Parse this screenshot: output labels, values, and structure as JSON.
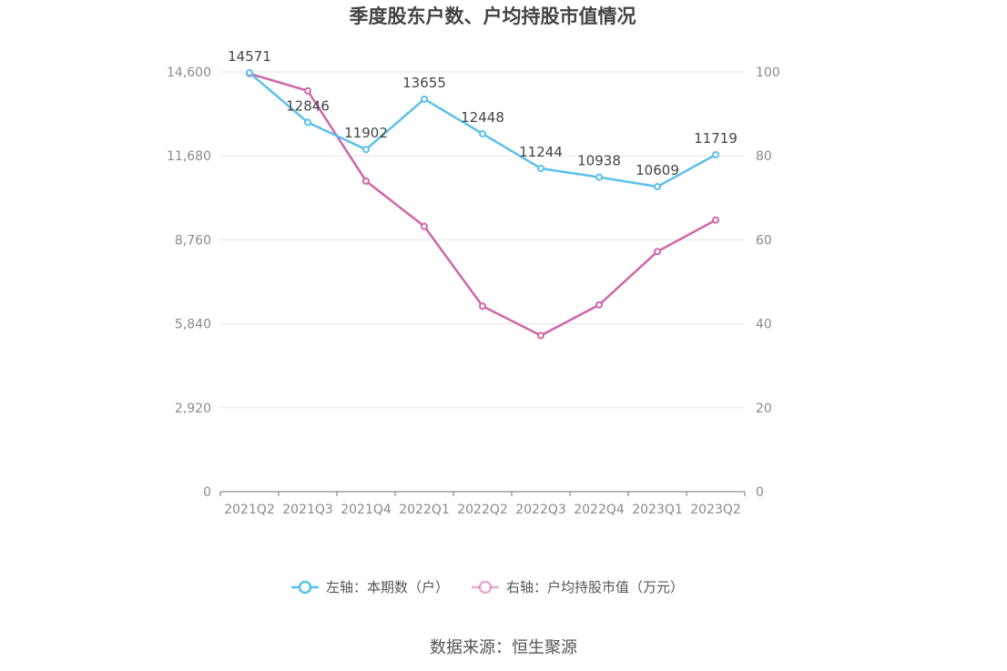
{
  "chart_data": {
    "type": "line",
    "title": "季度股东户数、户均持股市值情况",
    "categories": [
      "2021Q2",
      "2021Q3",
      "2021Q4",
      "2022Q1",
      "2022Q2",
      "2022Q3",
      "2022Q4",
      "2023Q1",
      "2023Q2"
    ],
    "y_left": {
      "ticks": [
        "0",
        "2,920",
        "5,840",
        "8,760",
        "11,680",
        "14,600"
      ],
      "range": [
        0,
        14600
      ]
    },
    "y_right": {
      "ticks": [
        "0",
        "20",
        "40",
        "60",
        "80",
        "100"
      ],
      "range": [
        0,
        100
      ]
    },
    "grid": true,
    "legend_position": "bottom-center",
    "series": [
      {
        "name": "左轴：本期数（户）",
        "axis": "left",
        "color": "#5bc0eb",
        "values": [
          14571,
          12846,
          11902,
          13655,
          12448,
          11244,
          10938,
          10609,
          11719
        ],
        "labels": [
          "14571",
          "12846",
          "11902",
          "13655",
          "12448",
          "11244",
          "10938",
          "10609",
          "11719"
        ]
      },
      {
        "name": "右轴：户均持股市值（万元）",
        "axis": "right",
        "color": "#d066a8",
        "values": [
          99.6,
          95.5,
          74.0,
          63.2,
          44.2,
          37.2,
          44.5,
          57.2,
          64.7
        ]
      }
    ],
    "source": "数据来源：恒生聚源"
  }
}
